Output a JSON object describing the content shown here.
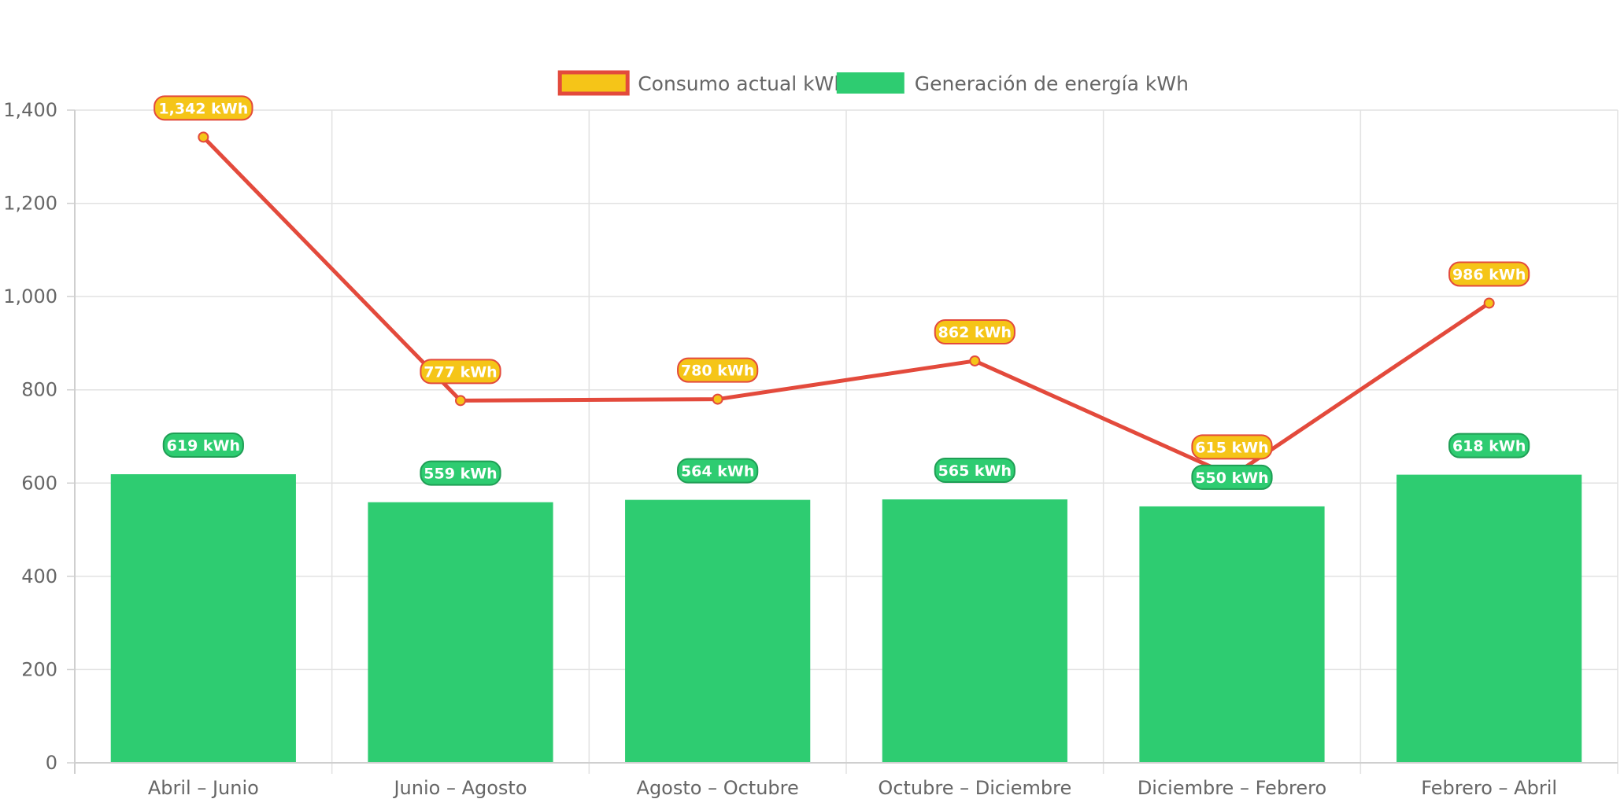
{
  "chart_data": {
    "type": "bar",
    "categories": [
      "Abril – Junio",
      "Junio – Agosto",
      "Agosto – Octubre",
      "Octubre – Diciembre",
      "Diciembre – Febrero",
      "Febrero – Abril"
    ],
    "series": [
      {
        "name": "Consumo actual kWh",
        "type": "line",
        "values": [
          1342,
          777,
          780,
          862,
          615,
          986
        ],
        "labels": [
          "1,342 kWh",
          "777 kWh",
          "780 kWh",
          "862 kWh",
          "615 kWh",
          "986 kWh"
        ],
        "color": "#e34a3c",
        "fill_color": "#f5c518"
      },
      {
        "name": "Generación de energía kWh",
        "type": "bar",
        "values": [
          619,
          559,
          564,
          565,
          550,
          618
        ],
        "labels": [
          "619 kWh",
          "559 kWh",
          "564 kWh",
          "565 kWh",
          "550 kWh",
          "618 kWh"
        ],
        "color": "#2ecc71",
        "label_border_color": "#1f9e55"
      }
    ],
    "ylim": [
      0,
      1400
    ],
    "yticks": [
      0,
      200,
      400,
      600,
      800,
      1000,
      1200,
      1400
    ],
    "ytick_labels": [
      "0",
      "200",
      "400",
      "600",
      "800",
      "1,000",
      "1,200",
      "1,400"
    ],
    "grid": true,
    "legend_position": "top-center"
  }
}
